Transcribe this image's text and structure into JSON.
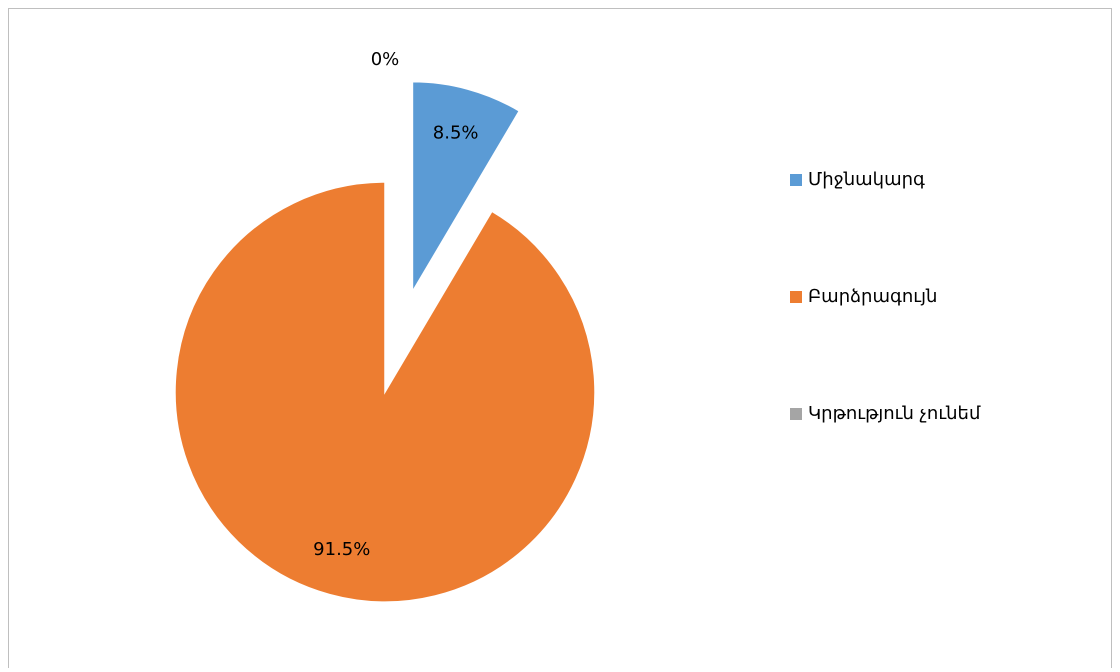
{
  "chart_data": {
    "type": "pie",
    "categories": [
      "Միջնակարգ",
      "Բարձրագույն",
      "Կրթություն չունեմ"
    ],
    "values": [
      8.5,
      91.5,
      0
    ],
    "value_labels": [
      "8.5%",
      "91.5%",
      "0%"
    ],
    "colors": [
      "#5b9bd5",
      "#ed7d31",
      "#a5a5a5"
    ],
    "exploded": [
      true,
      false,
      false
    ],
    "legend": "right"
  }
}
